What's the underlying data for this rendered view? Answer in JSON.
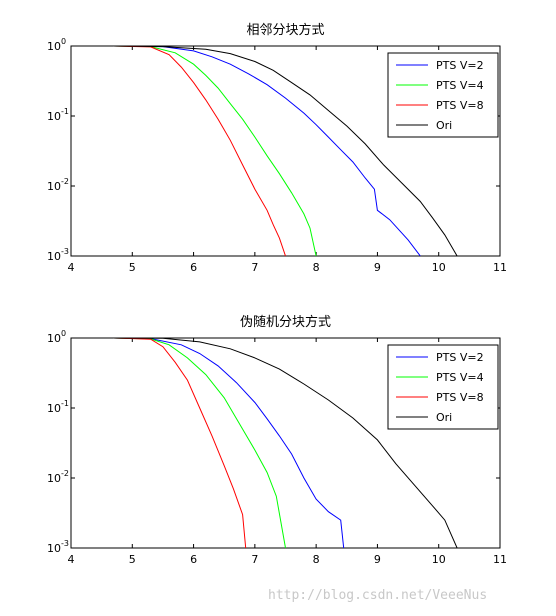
{
  "watermark": "http://blog.csdn.net/VeeeNus",
  "chart_data": [
    {
      "type": "line",
      "title": "相邻分块方式",
      "xlabel": "",
      "ylabel": "",
      "xlim": [
        4,
        11
      ],
      "ylim": [
        0.001,
        1
      ],
      "yscale": "log",
      "xticks": [
        4,
        5,
        6,
        7,
        8,
        9,
        10,
        11
      ],
      "yticks": [
        {
          "value": 1,
          "base": "10",
          "exp": "0"
        },
        {
          "value": 0.1,
          "base": "10",
          "exp": "-1"
        },
        {
          "value": 0.01,
          "base": "10",
          "exp": "-2"
        },
        {
          "value": 0.001,
          "base": "10",
          "exp": "-3"
        }
      ],
      "legend": "top-right",
      "grid": false,
      "series": [
        {
          "name": "PTS V=2",
          "color": "#0000ff",
          "x": [
            4.7,
            5.5,
            6.0,
            6.3,
            6.6,
            6.9,
            7.2,
            7.5,
            7.8,
            8.0,
            8.2,
            8.4,
            8.6,
            8.8,
            8.95,
            9.0,
            9.2,
            9.5,
            9.7
          ],
          "y": [
            1,
            0.98,
            0.85,
            0.7,
            0.55,
            0.4,
            0.28,
            0.18,
            0.11,
            0.075,
            0.05,
            0.033,
            0.022,
            0.013,
            0.009,
            0.0045,
            0.0033,
            0.0017,
            0.001
          ]
        },
        {
          "name": "PTS V=4",
          "color": "#00ff00",
          "x": [
            4.7,
            5.3,
            5.7,
            6.0,
            6.2,
            6.4,
            6.6,
            6.8,
            7.0,
            7.2,
            7.4,
            7.6,
            7.8,
            7.9,
            8.0
          ],
          "y": [
            1,
            0.98,
            0.8,
            0.55,
            0.38,
            0.25,
            0.15,
            0.09,
            0.05,
            0.027,
            0.015,
            0.008,
            0.004,
            0.0025,
            0.001
          ]
        },
        {
          "name": "PTS V=8",
          "color": "#ff0000",
          "x": [
            4.7,
            5.3,
            5.6,
            5.8,
            6.0,
            6.2,
            6.4,
            6.6,
            6.8,
            7.0,
            7.2,
            7.3,
            7.4,
            7.5
          ],
          "y": [
            1,
            0.97,
            0.75,
            0.5,
            0.3,
            0.17,
            0.09,
            0.045,
            0.02,
            0.009,
            0.0045,
            0.0028,
            0.0018,
            0.001
          ]
        },
        {
          "name": "Ori",
          "color": "#000000",
          "x": [
            4.7,
            5.5,
            6.2,
            6.6,
            7.0,
            7.3,
            7.6,
            7.9,
            8.2,
            8.5,
            8.8,
            9.1,
            9.4,
            9.7,
            9.9,
            10.1,
            10.3
          ],
          "y": [
            1,
            0.98,
            0.9,
            0.78,
            0.6,
            0.45,
            0.3,
            0.2,
            0.12,
            0.072,
            0.04,
            0.02,
            0.011,
            0.006,
            0.0035,
            0.002,
            0.001
          ]
        }
      ]
    },
    {
      "type": "line",
      "title": "伪随机分块方式",
      "xlabel": "",
      "ylabel": "",
      "xlim": [
        4,
        11
      ],
      "ylim": [
        0.001,
        1
      ],
      "yscale": "log",
      "xticks": [
        4,
        5,
        6,
        7,
        8,
        9,
        10,
        11
      ],
      "yticks": [
        {
          "value": 1,
          "base": "10",
          "exp": "0"
        },
        {
          "value": 0.1,
          "base": "10",
          "exp": "-1"
        },
        {
          "value": 0.01,
          "base": "10",
          "exp": "-2"
        },
        {
          "value": 0.001,
          "base": "10",
          "exp": "-3"
        }
      ],
      "legend": "top-right",
      "grid": false,
      "series": [
        {
          "name": "PTS V=2",
          "color": "#0000ff",
          "x": [
            4.7,
            5.3,
            5.8,
            6.1,
            6.4,
            6.7,
            7.0,
            7.2,
            7.4,
            7.6,
            7.8,
            8.0,
            8.2,
            8.4,
            8.45
          ],
          "y": [
            1,
            0.98,
            0.8,
            0.6,
            0.4,
            0.23,
            0.12,
            0.07,
            0.04,
            0.022,
            0.01,
            0.005,
            0.0033,
            0.0025,
            0.001
          ]
        },
        {
          "name": "PTS V=4",
          "color": "#00ff00",
          "x": [
            4.7,
            5.3,
            5.6,
            5.9,
            6.2,
            6.5,
            6.8,
            7.0,
            7.2,
            7.35,
            7.5
          ],
          "y": [
            1,
            0.97,
            0.8,
            0.52,
            0.3,
            0.14,
            0.05,
            0.025,
            0.012,
            0.0055,
            0.001
          ]
        },
        {
          "name": "PTS V=8",
          "color": "#ff0000",
          "x": [
            4.7,
            5.3,
            5.5,
            5.7,
            5.9,
            6.1,
            6.3,
            6.5,
            6.65,
            6.8,
            6.85
          ],
          "y": [
            1,
            0.96,
            0.75,
            0.45,
            0.25,
            0.1,
            0.04,
            0.015,
            0.007,
            0.003,
            0.001
          ]
        },
        {
          "name": "Ori",
          "color": "#000000",
          "x": [
            4.7,
            5.5,
            6.1,
            6.6,
            7.0,
            7.4,
            7.8,
            8.2,
            8.6,
            9.0,
            9.3,
            9.6,
            9.9,
            10.1,
            10.3
          ],
          "y": [
            1,
            0.99,
            0.88,
            0.7,
            0.52,
            0.36,
            0.22,
            0.13,
            0.072,
            0.035,
            0.016,
            0.008,
            0.004,
            0.0025,
            0.001
          ]
        }
      ]
    }
  ]
}
